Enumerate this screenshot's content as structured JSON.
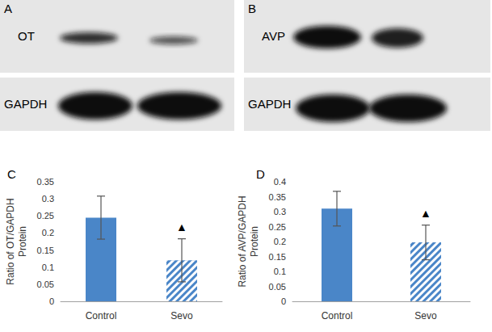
{
  "blots": [
    {
      "panel": "A",
      "rows": [
        "OT",
        "GAPDH"
      ]
    },
    {
      "panel": "B",
      "rows": [
        "AVP",
        "GAPDH"
      ]
    }
  ],
  "chart_data": [
    {
      "type": "bar",
      "title": "C",
      "categories": [
        "Control",
        "Sevo"
      ],
      "values": [
        0.245,
        0.12
      ],
      "errors": [
        0.063,
        0.063
      ],
      "colors": [
        "#4a86c8",
        "#4a86c8"
      ],
      "y_label": "Ratio of OT/GAPDH\nProtein",
      "ylim": [
        0,
        0.35
      ],
      "yticks": [
        0,
        0.05,
        0.1,
        0.15,
        0.2,
        0.25,
        0.3,
        0.35
      ],
      "grid": false,
      "annotations": [
        {
          "text": "▲",
          "category": "Sevo"
        }
      ]
    },
    {
      "type": "bar",
      "title": "D",
      "categories": [
        "Control",
        "Sevo"
      ],
      "values": [
        0.31,
        0.197
      ],
      "errors": [
        0.058,
        0.058
      ],
      "colors": [
        "#4a86c8",
        "#4a86c8"
      ],
      "y_label": "Ratio of AVP/GAPDH\nProtein",
      "ylim": [
        0,
        0.4
      ],
      "yticks": [
        0,
        0.05,
        0.1,
        0.15,
        0.2,
        0.25,
        0.3,
        0.35,
        0.4
      ],
      "grid": false,
      "annotations": [
        {
          "text": "▲",
          "category": "Sevo"
        }
      ]
    }
  ]
}
